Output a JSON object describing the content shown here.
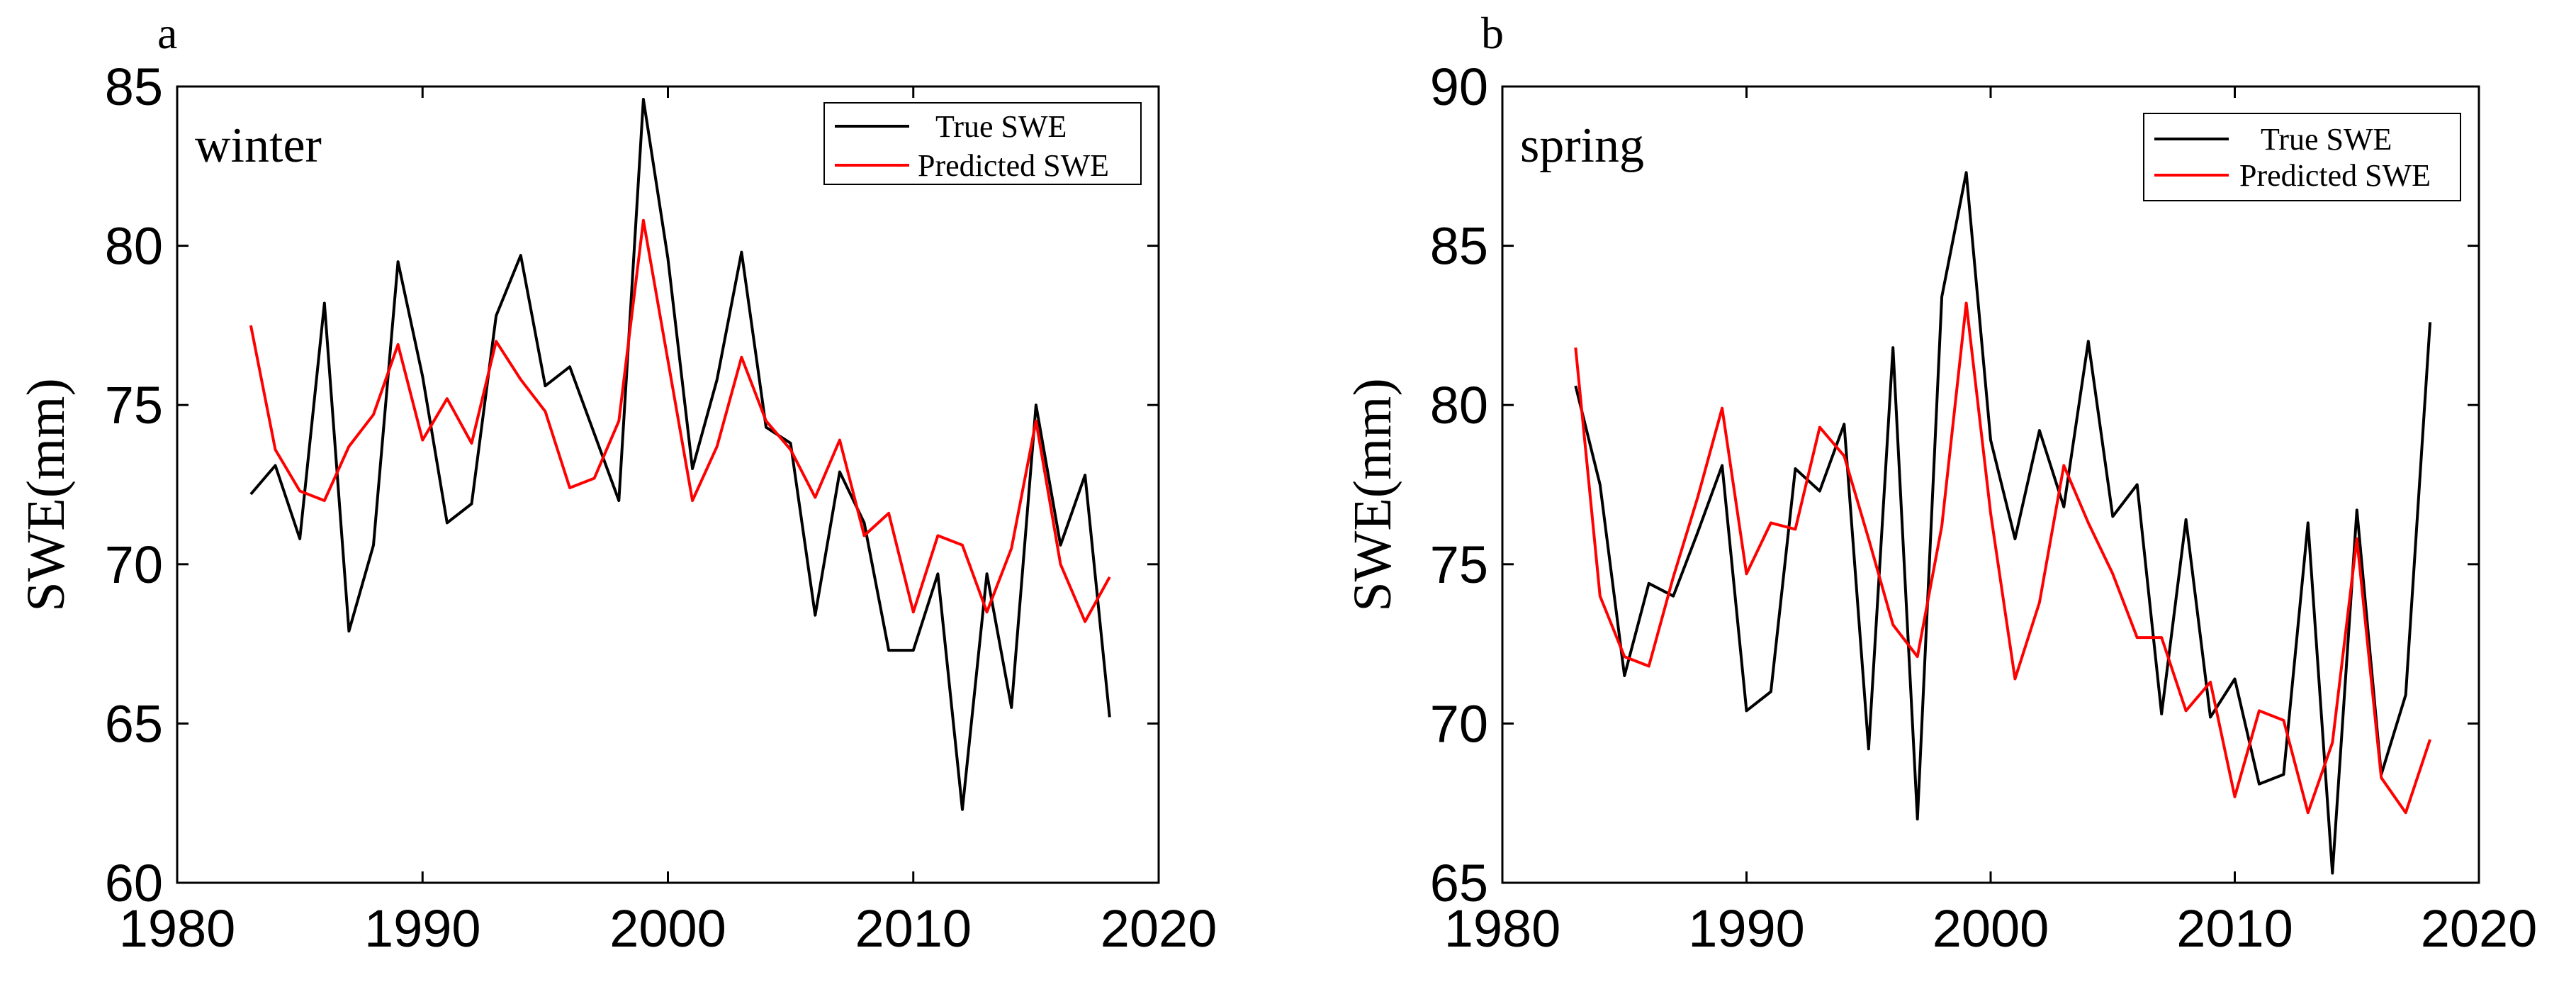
{
  "chart_data": [
    {
      "type": "line",
      "panel_label": "a",
      "annotation": "winter",
      "xlabel": "",
      "ylabel": "SWE(mm)",
      "xlim": [
        1980,
        2020
      ],
      "ylim": [
        60,
        85
      ],
      "xticks": [
        1980,
        1990,
        2000,
        2010,
        2020
      ],
      "yticks": [
        60,
        65,
        70,
        75,
        80,
        85
      ],
      "legend_position": "top-right",
      "x": [
        1983,
        1984,
        1985,
        1986,
        1987,
        1988,
        1989,
        1990,
        1991,
        1992,
        1993,
        1994,
        1995,
        1996,
        1997,
        1998,
        1999,
        2000,
        2001,
        2002,
        2003,
        2004,
        2005,
        2006,
        2007,
        2008,
        2009,
        2010,
        2011,
        2012,
        2013,
        2014,
        2015,
        2016,
        2017,
        2018
      ],
      "series": [
        {
          "name": "True SWE",
          "color": "#000000",
          "values": [
            72.2,
            73.1,
            70.8,
            78.2,
            67.9,
            70.6,
            79.5,
            75.9,
            71.3,
            71.9,
            77.8,
            79.7,
            75.6,
            76.2,
            74.1,
            72.0,
            84.6,
            79.6,
            73.0,
            75.8,
            79.8,
            74.3,
            73.8,
            68.4,
            72.9,
            71.3,
            67.3,
            67.3,
            69.7,
            62.3,
            69.7,
            65.5,
            75.0,
            70.6,
            72.8,
            65.2
          ]
        },
        {
          "name": "Predicted SWE",
          "color": "#ff0000",
          "values": [
            77.5,
            73.6,
            72.3,
            72.0,
            73.7,
            74.7,
            76.9,
            73.9,
            75.2,
            73.8,
            77.0,
            75.8,
            74.8,
            72.4,
            72.7,
            74.5,
            80.8,
            76.4,
            72.0,
            73.7,
            76.5,
            74.5,
            73.6,
            72.1,
            73.9,
            70.9,
            71.6,
            68.5,
            70.9,
            70.6,
            68.5,
            70.5,
            74.5,
            70.0,
            68.2,
            69.6
          ]
        }
      ]
    },
    {
      "type": "line",
      "panel_label": "b",
      "annotation": "spring",
      "xlabel": "",
      "ylabel": "SWE(mm)",
      "xlim": [
        1980,
        2020
      ],
      "ylim": [
        65,
        90
      ],
      "xticks": [
        1980,
        1990,
        2000,
        2010,
        2020
      ],
      "yticks": [
        65,
        70,
        75,
        80,
        85,
        90
      ],
      "legend_position": "top-right",
      "x": [
        1983,
        1984,
        1985,
        1986,
        1987,
        1988,
        1989,
        1990,
        1991,
        1992,
        1993,
        1994,
        1995,
        1996,
        1997,
        1998,
        1999,
        2000,
        2001,
        2002,
        2003,
        2004,
        2005,
        2006,
        2007,
        2008,
        2009,
        2010,
        2011,
        2012,
        2013,
        2014,
        2015,
        2016,
        2017,
        2018
      ],
      "series": [
        {
          "name": "True SWE",
          "color": "#000000",
          "values": [
            80.6,
            77.5,
            71.5,
            74.4,
            74.0,
            76.0,
            78.1,
            70.4,
            71.0,
            78.0,
            77.3,
            79.4,
            69.2,
            81.8,
            67.0,
            83.4,
            87.3,
            78.9,
            75.8,
            79.2,
            76.8,
            82.0,
            76.5,
            77.5,
            70.3,
            76.4,
            70.2,
            71.4,
            68.1,
            68.4,
            76.3,
            65.3,
            76.7,
            68.4,
            70.9,
            82.6
          ]
        },
        {
          "name": "Predicted SWE",
          "color": "#ff0000",
          "values": [
            81.8,
            74.0,
            72.1,
            71.8,
            74.6,
            77.1,
            79.9,
            74.7,
            76.3,
            76.1,
            79.3,
            78.4,
            75.8,
            73.1,
            72.1,
            76.2,
            83.2,
            76.6,
            71.4,
            73.8,
            78.1,
            76.3,
            74.7,
            72.7,
            72.7,
            70.4,
            71.3,
            67.7,
            70.4,
            70.1,
            67.2,
            69.4,
            75.8,
            68.3,
            67.2,
            69.5
          ]
        }
      ]
    }
  ]
}
